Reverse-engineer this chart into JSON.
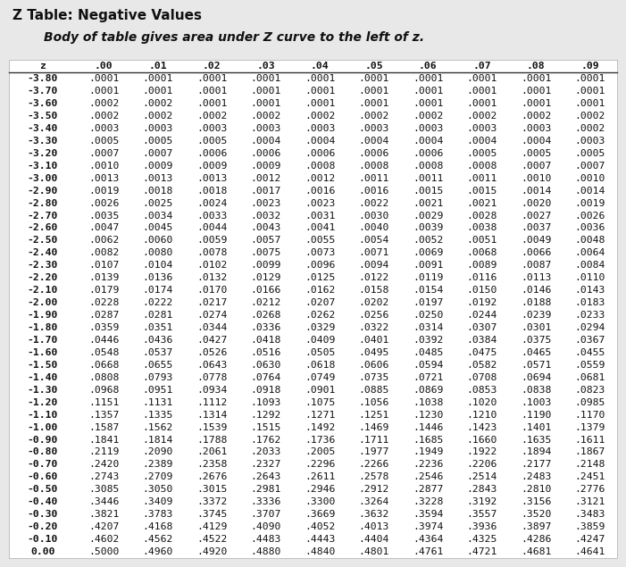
{
  "title": "Z Table: Negative Values",
  "subtitle": "Body of table gives area under Z curve to the left of z.",
  "col_headers": [
    "z",
    ".00",
    ".01",
    ".02",
    ".03",
    ".04",
    ".05",
    ".06",
    ".07",
    ".08",
    ".09"
  ],
  "rows": [
    [
      "-3.80",
      ".0001",
      ".0001",
      ".0001",
      ".0001",
      ".0001",
      ".0001",
      ".0001",
      ".0001",
      ".0001",
      ".0001"
    ],
    [
      "-3.70",
      ".0001",
      ".0001",
      ".0001",
      ".0001",
      ".0001",
      ".0001",
      ".0001",
      ".0001",
      ".0001",
      ".0001"
    ],
    [
      "-3.60",
      ".0002",
      ".0002",
      ".0001",
      ".0001",
      ".0001",
      ".0001",
      ".0001",
      ".0001",
      ".0001",
      ".0001"
    ],
    [
      "-3.50",
      ".0002",
      ".0002",
      ".0002",
      ".0002",
      ".0002",
      ".0002",
      ".0002",
      ".0002",
      ".0002",
      ".0002"
    ],
    [
      "-3.40",
      ".0003",
      ".0003",
      ".0003",
      ".0003",
      ".0003",
      ".0003",
      ".0003",
      ".0003",
      ".0003",
      ".0002"
    ],
    [
      "-3.30",
      ".0005",
      ".0005",
      ".0005",
      ".0004",
      ".0004",
      ".0004",
      ".0004",
      ".0004",
      ".0004",
      ".0003"
    ],
    [
      "-3.20",
      ".0007",
      ".0007",
      ".0006",
      ".0006",
      ".0006",
      ".0006",
      ".0006",
      ".0005",
      ".0005",
      ".0005"
    ],
    [
      "-3.10",
      ".0010",
      ".0009",
      ".0009",
      ".0009",
      ".0008",
      ".0008",
      ".0008",
      ".0008",
      ".0007",
      ".0007"
    ],
    [
      "-3.00",
      ".0013",
      ".0013",
      ".0013",
      ".0012",
      ".0012",
      ".0011",
      ".0011",
      ".0011",
      ".0010",
      ".0010"
    ],
    [
      "-2.90",
      ".0019",
      ".0018",
      ".0018",
      ".0017",
      ".0016",
      ".0016",
      ".0015",
      ".0015",
      ".0014",
      ".0014"
    ],
    [
      "-2.80",
      ".0026",
      ".0025",
      ".0024",
      ".0023",
      ".0023",
      ".0022",
      ".0021",
      ".0021",
      ".0020",
      ".0019"
    ],
    [
      "-2.70",
      ".0035",
      ".0034",
      ".0033",
      ".0032",
      ".0031",
      ".0030",
      ".0029",
      ".0028",
      ".0027",
      ".0026"
    ],
    [
      "-2.60",
      ".0047",
      ".0045",
      ".0044",
      ".0043",
      ".0041",
      ".0040",
      ".0039",
      ".0038",
      ".0037",
      ".0036"
    ],
    [
      "-2.50",
      ".0062",
      ".0060",
      ".0059",
      ".0057",
      ".0055",
      ".0054",
      ".0052",
      ".0051",
      ".0049",
      ".0048"
    ],
    [
      "-2.40",
      ".0082",
      ".0080",
      ".0078",
      ".0075",
      ".0073",
      ".0071",
      ".0069",
      ".0068",
      ".0066",
      ".0064"
    ],
    [
      "-2.30",
      ".0107",
      ".0104",
      ".0102",
      ".0099",
      ".0096",
      ".0094",
      ".0091",
      ".0089",
      ".0087",
      ".0084"
    ],
    [
      "-2.20",
      ".0139",
      ".0136",
      ".0132",
      ".0129",
      ".0125",
      ".0122",
      ".0119",
      ".0116",
      ".0113",
      ".0110"
    ],
    [
      "-2.10",
      ".0179",
      ".0174",
      ".0170",
      ".0166",
      ".0162",
      ".0158",
      ".0154",
      ".0150",
      ".0146",
      ".0143"
    ],
    [
      "-2.00",
      ".0228",
      ".0222",
      ".0217",
      ".0212",
      ".0207",
      ".0202",
      ".0197",
      ".0192",
      ".0188",
      ".0183"
    ],
    [
      "-1.90",
      ".0287",
      ".0281",
      ".0274",
      ".0268",
      ".0262",
      ".0256",
      ".0250",
      ".0244",
      ".0239",
      ".0233"
    ],
    [
      "-1.80",
      ".0359",
      ".0351",
      ".0344",
      ".0336",
      ".0329",
      ".0322",
      ".0314",
      ".0307",
      ".0301",
      ".0294"
    ],
    [
      "-1.70",
      ".0446",
      ".0436",
      ".0427",
      ".0418",
      ".0409",
      ".0401",
      ".0392",
      ".0384",
      ".0375",
      ".0367"
    ],
    [
      "-1.60",
      ".0548",
      ".0537",
      ".0526",
      ".0516",
      ".0505",
      ".0495",
      ".0485",
      ".0475",
      ".0465",
      ".0455"
    ],
    [
      "-1.50",
      ".0668",
      ".0655",
      ".0643",
      ".0630",
      ".0618",
      ".0606",
      ".0594",
      ".0582",
      ".0571",
      ".0559"
    ],
    [
      "-1.40",
      ".0808",
      ".0793",
      ".0778",
      ".0764",
      ".0749",
      ".0735",
      ".0721",
      ".0708",
      ".0694",
      ".0681"
    ],
    [
      "-1.30",
      ".0968",
      ".0951",
      ".0934",
      ".0918",
      ".0901",
      ".0885",
      ".0869",
      ".0853",
      ".0838",
      ".0823"
    ],
    [
      "-1.20",
      ".1151",
      ".1131",
      ".1112",
      ".1093",
      ".1075",
      ".1056",
      ".1038",
      ".1020",
      ".1003",
      ".0985"
    ],
    [
      "-1.10",
      ".1357",
      ".1335",
      ".1314",
      ".1292",
      ".1271",
      ".1251",
      ".1230",
      ".1210",
      ".1190",
      ".1170"
    ],
    [
      "-1.00",
      ".1587",
      ".1562",
      ".1539",
      ".1515",
      ".1492",
      ".1469",
      ".1446",
      ".1423",
      ".1401",
      ".1379"
    ],
    [
      "-0.90",
      ".1841",
      ".1814",
      ".1788",
      ".1762",
      ".1736",
      ".1711",
      ".1685",
      ".1660",
      ".1635",
      ".1611"
    ],
    [
      "-0.80",
      ".2119",
      ".2090",
      ".2061",
      ".2033",
      ".2005",
      ".1977",
      ".1949",
      ".1922",
      ".1894",
      ".1867"
    ],
    [
      "-0.70",
      ".2420",
      ".2389",
      ".2358",
      ".2327",
      ".2296",
      ".2266",
      ".2236",
      ".2206",
      ".2177",
      ".2148"
    ],
    [
      "-0.60",
      ".2743",
      ".2709",
      ".2676",
      ".2643",
      ".2611",
      ".2578",
      ".2546",
      ".2514",
      ".2483",
      ".2451"
    ],
    [
      "-0.50",
      ".3085",
      ".3050",
      ".3015",
      ".2981",
      ".2946",
      ".2912",
      ".2877",
      ".2843",
      ".2810",
      ".2776"
    ],
    [
      "-0.40",
      ".3446",
      ".3409",
      ".3372",
      ".3336",
      ".3300",
      ".3264",
      ".3228",
      ".3192",
      ".3156",
      ".3121"
    ],
    [
      "-0.30",
      ".3821",
      ".3783",
      ".3745",
      ".3707",
      ".3669",
      ".3632",
      ".3594",
      ".3557",
      ".3520",
      ".3483"
    ],
    [
      "-0.20",
      ".4207",
      ".4168",
      ".4129",
      ".4090",
      ".4052",
      ".4013",
      ".3974",
      ".3936",
      ".3897",
      ".3859"
    ],
    [
      "-0.10",
      ".4602",
      ".4562",
      ".4522",
      ".4483",
      ".4443",
      ".4404",
      ".4364",
      ".4325",
      ".4286",
      ".4247"
    ],
    [
      "0.00",
      ".5000",
      ".4960",
      ".4920",
      ".4880",
      ".4840",
      ".4801",
      ".4761",
      ".4721",
      ".4681",
      ".4641"
    ]
  ],
  "bg_color": "#e8e8e8",
  "table_bg": "#ffffff",
  "line_color": "#333333",
  "title_fontsize": 11,
  "subtitle_fontsize": 10,
  "table_fontsize": 8.2
}
